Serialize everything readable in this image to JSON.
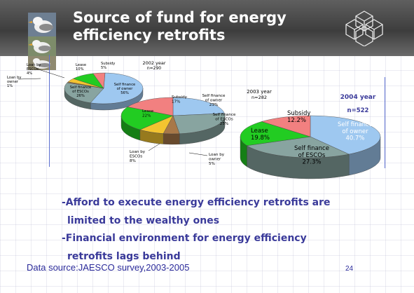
{
  "slide": {
    "title_line1": "Source of fund for energy",
    "title_line2": "efficiency retrofits",
    "bullets": [
      "-Afford to execute energy efficiency retrofits are",
      "limited to the wealthy ones",
      "-Financial environment for energy efficiency",
      "retrofits lags behind"
    ],
    "source": "Data source:JAESCO survey,2003-2005",
    "page_number": "24"
  },
  "colors": {
    "self_owner": "#9ec8f0",
    "self_escos": "#88a4a0",
    "subsidy": "#f28080",
    "lease": "#22cc22",
    "loan_escos": "#f4c430",
    "loan_owner": "#a87848",
    "banner": "#4a4a4a",
    "bullet_text": "#3a3a9a"
  },
  "chart_data": [
    {
      "type": "pie",
      "title": "2002 year",
      "subtitle": "n=290",
      "slices": [
        {
          "label": "Self finance of owner",
          "value": 56,
          "display": "56%",
          "color_key": "self_owner"
        },
        {
          "label": "Self finance of ESCOs",
          "value": 26,
          "display": "26%",
          "color_key": "self_escos"
        },
        {
          "label": "Loan by owner",
          "value": 1,
          "display": "1%",
          "color_key": "loan_owner"
        },
        {
          "label": "Loan by ESCOs",
          "value": 4,
          "display": "4%",
          "color_key": "loan_escos"
        },
        {
          "label": "Lease",
          "value": 10,
          "display": "10%",
          "color_key": "lease"
        },
        {
          "label": "Subsidy",
          "value": 5,
          "display": "5%",
          "color_key": "subsidy"
        }
      ]
    },
    {
      "type": "pie",
      "title": "2003 year",
      "subtitle": "n=282",
      "slices": [
        {
          "label": "Self finance of owner",
          "value": 23,
          "display": "23%",
          "color_key": "self_owner"
        },
        {
          "label": "Self finance of ESCOs",
          "value": 25,
          "display": "25%",
          "color_key": "self_escos"
        },
        {
          "label": "Loan by owner",
          "value": 5,
          "display": "5%",
          "color_key": "loan_owner"
        },
        {
          "label": "Loan by ESCOs",
          "value": 8,
          "display": "8%",
          "color_key": "loan_escos"
        },
        {
          "label": "Lease",
          "value": 22,
          "display": "22%",
          "color_key": "lease"
        },
        {
          "label": "Subsidy",
          "value": 17,
          "display": "17%",
          "color_key": "subsidy"
        }
      ]
    },
    {
      "type": "pie",
      "title": "2004 year",
      "subtitle": "n=522",
      "slices": [
        {
          "label": "Self finance of owner",
          "value": 40.7,
          "display": "40.7%",
          "color_key": "self_owner"
        },
        {
          "label": "Self finance of ESCOs",
          "value": 27.3,
          "display": "27.3%",
          "color_key": "self_escos"
        },
        {
          "label": "Lease",
          "value": 19.8,
          "display": "19.8%",
          "color_key": "lease"
        },
        {
          "label": "Subsidy",
          "value": 12.2,
          "display": "12.2%",
          "color_key": "subsidy"
        }
      ]
    }
  ]
}
